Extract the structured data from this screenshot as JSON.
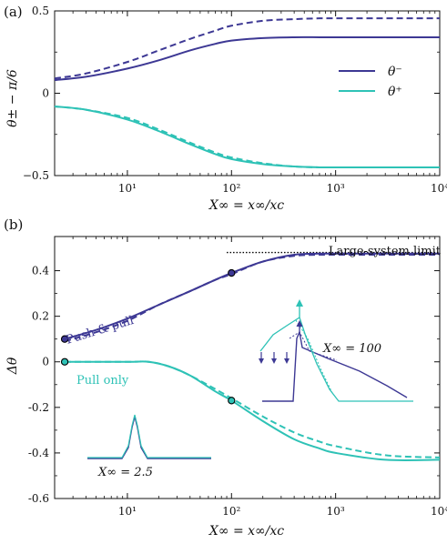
{
  "colors": {
    "minus": "#3d3894",
    "plus": "#2ec2b6",
    "axis": "#111111"
  },
  "chart_data": [
    {
      "panel": "(a)",
      "type": "line",
      "xscale": "log",
      "xlim": [
        2,
        10000
      ],
      "ylim": [
        -0.5,
        0.5
      ],
      "xlabel": "X∞ = x∞/xc",
      "ylabel": "θ± − π/6",
      "xticks": [
        10,
        100,
        1000,
        10000
      ],
      "xtick_labels": [
        "10¹",
        "10²",
        "10³",
        "10⁴"
      ],
      "yticks": [
        -0.5,
        0,
        0.5
      ],
      "ytick_labels": [
        "−0.5",
        "0",
        "0.5"
      ],
      "legend": {
        "position": "right",
        "entries": [
          "θ⁻",
          "θ⁺"
        ]
      },
      "series": [
        {
          "name": "θ⁻",
          "color": "minus",
          "style": "solid",
          "x": [
            2,
            4,
            10,
            20,
            40,
            70,
            100,
            200,
            400,
            700,
            1000,
            10000
          ],
          "y": [
            0.08,
            0.1,
            0.15,
            0.2,
            0.26,
            0.3,
            0.32,
            0.335,
            0.34,
            0.34,
            0.34,
            0.34
          ]
        },
        {
          "name": "",
          "color": "minus",
          "style": "dashed",
          "x": [
            2,
            4,
            10,
            20,
            40,
            70,
            100,
            200,
            400,
            700,
            1000,
            10000
          ],
          "y": [
            0.09,
            0.12,
            0.19,
            0.26,
            0.33,
            0.38,
            0.41,
            0.44,
            0.45,
            0.455,
            0.455,
            0.455
          ]
        },
        {
          "name": "θ⁺",
          "color": "plus",
          "style": "solid",
          "x": [
            2,
            4,
            10,
            20,
            40,
            70,
            100,
            200,
            400,
            700,
            1000,
            10000
          ],
          "y": [
            -0.08,
            -0.1,
            -0.16,
            -0.23,
            -0.31,
            -0.37,
            -0.4,
            -0.43,
            -0.445,
            -0.45,
            -0.45,
            -0.45
          ]
        },
        {
          "name": "",
          "color": "plus",
          "style": "dashed",
          "x": [
            2,
            4,
            10,
            20,
            40,
            70,
            100,
            200,
            400,
            700,
            1000,
            10000
          ],
          "y": [
            -0.08,
            -0.1,
            -0.15,
            -0.22,
            -0.3,
            -0.36,
            -0.39,
            -0.425,
            -0.445,
            -0.45,
            -0.45,
            -0.45
          ]
        }
      ]
    },
    {
      "panel": "(b)",
      "type": "line",
      "xscale": "log",
      "xlim": [
        2,
        10000
      ],
      "ylim": [
        -0.6,
        0.55
      ],
      "xlabel": "X∞ = x∞/xc",
      "ylabel": "Δθ",
      "xticks": [
        10,
        100,
        1000,
        10000
      ],
      "xtick_labels": [
        "10¹",
        "10²",
        "10³",
        "10⁴"
      ],
      "yticks": [
        -0.6,
        -0.4,
        -0.2,
        0,
        0.2,
        0.4
      ],
      "ytick_labels": [
        "-0.6",
        "-0.4",
        "-0.2",
        "0",
        "0.2",
        "0.4"
      ],
      "annotations": {
        "large_system_limit": "Large-system limit",
        "push_pull": "Push & pull",
        "pull_only": "Pull only",
        "inset_small": "X∞ = 2.5",
        "inset_large": "X∞ = 100"
      },
      "limit_line": {
        "y": 0.48,
        "x_from": 90,
        "x_to": 10000
      },
      "markers": [
        {
          "x": 2.5,
          "y": 0.1,
          "color": "minus"
        },
        {
          "x": 100,
          "y": 0.39,
          "color": "minus"
        },
        {
          "x": 2.5,
          "y": 0.0,
          "color": "plus"
        },
        {
          "x": 100,
          "y": -0.17,
          "color": "plus"
        }
      ],
      "series": [
        {
          "name": "Push & pull",
          "color": "minus",
          "style": "solid",
          "x": [
            2.5,
            5,
            10,
            20,
            40,
            70,
            100,
            200,
            400,
            700,
            1000,
            10000
          ],
          "y": [
            0.1,
            0.14,
            0.19,
            0.25,
            0.31,
            0.36,
            0.39,
            0.44,
            0.47,
            0.475,
            0.475,
            0.475
          ]
        },
        {
          "name": "",
          "color": "minus",
          "style": "dashed",
          "x": [
            2.5,
            5,
            10,
            20,
            40,
            70,
            100,
            200,
            400,
            700,
            1000,
            10000
          ],
          "y": [
            0.09,
            0.13,
            0.18,
            0.25,
            0.31,
            0.36,
            0.385,
            0.44,
            0.465,
            0.47,
            0.47,
            0.47
          ]
        },
        {
          "name": "Pull only",
          "color": "plus",
          "style": "solid",
          "x": [
            2.5,
            10,
            16,
            25,
            40,
            70,
            100,
            200,
            400,
            700,
            1000,
            3000,
            10000
          ],
          "y": [
            0.0,
            0.0,
            0.0,
            -0.02,
            -0.06,
            -0.13,
            -0.17,
            -0.26,
            -0.34,
            -0.38,
            -0.4,
            -0.43,
            -0.43
          ]
        },
        {
          "name": "",
          "color": "plus",
          "style": "dashed",
          "x": [
            2.5,
            10,
            16,
            25,
            40,
            70,
            100,
            200,
            400,
            700,
            1000,
            3000,
            10000
          ],
          "y": [
            0.0,
            0.0,
            0.0,
            -0.02,
            -0.06,
            -0.12,
            -0.16,
            -0.24,
            -0.31,
            -0.35,
            -0.37,
            -0.41,
            -0.42
          ]
        }
      ]
    }
  ]
}
